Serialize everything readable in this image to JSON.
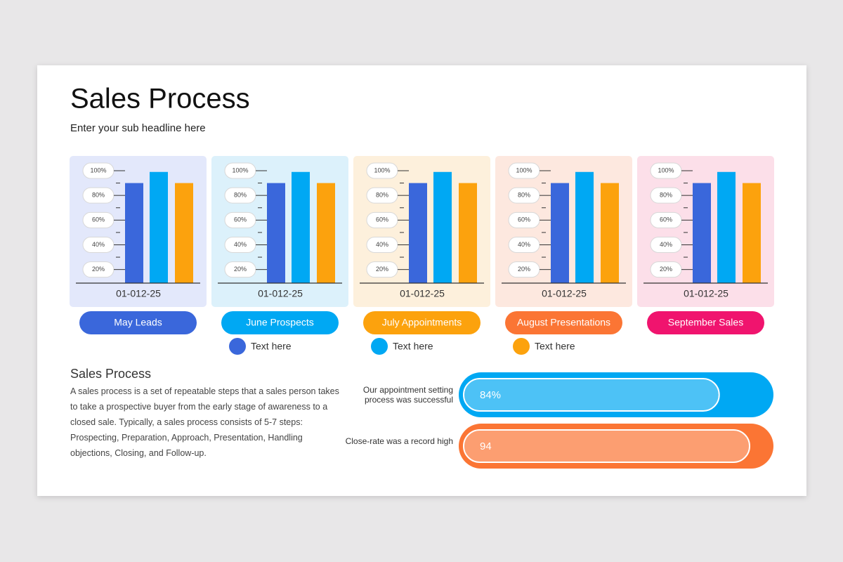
{
  "title": "Sales Process",
  "subtitle": "Enter your sub headline here",
  "chart_data": [
    {
      "type": "bar",
      "name": "May Leads",
      "name_color": "#3a67db",
      "background": "#e3e8fb",
      "x_label": "01-012-25",
      "categories": [
        null,
        null,
        null
      ],
      "values": [
        90,
        99,
        90
      ],
      "colors": [
        "#3a67db",
        "#00a8f3",
        "#fca20d"
      ],
      "ylim": [
        9,
        100
      ],
      "yticks": [
        {
          "value": 20,
          "label": "20%"
        },
        {
          "value": 40,
          "label": "40%"
        },
        {
          "value": 60,
          "label": "60%"
        },
        {
          "value": 80,
          "label": "80%"
        },
        {
          "value": 100,
          "label": "100%"
        }
      ],
      "minor_yticks": [
        30,
        50,
        70,
        90
      ]
    },
    {
      "type": "bar",
      "name": "June Prospects",
      "name_color": "#00a8f3",
      "background": "#dcf1fb",
      "x_label": "01-012-25",
      "categories": [
        null,
        null,
        null
      ],
      "values": [
        90,
        99,
        90
      ],
      "colors": [
        "#3a67db",
        "#00a8f3",
        "#fca20d"
      ],
      "ylim": [
        9,
        100
      ],
      "yticks": [
        {
          "value": 20,
          "label": "20%"
        },
        {
          "value": 40,
          "label": "40%"
        },
        {
          "value": 60,
          "label": "60%"
        },
        {
          "value": 80,
          "label": "80%"
        },
        {
          "value": 100,
          "label": "100%"
        }
      ],
      "minor_yticks": [
        30,
        50,
        70,
        90
      ]
    },
    {
      "type": "bar",
      "name": "July Appointments",
      "name_color": "#fca20d",
      "background": "#fdf0dc",
      "x_label": "01-012-25",
      "categories": [
        null,
        null,
        null
      ],
      "values": [
        90,
        99,
        90
      ],
      "colors": [
        "#3a67db",
        "#00a8f3",
        "#fca20d"
      ],
      "ylim": [
        9,
        100
      ],
      "yticks": [
        {
          "value": 20,
          "label": "20%"
        },
        {
          "value": 40,
          "label": "40%"
        },
        {
          "value": 60,
          "label": "60%"
        },
        {
          "value": 80,
          "label": "80%"
        },
        {
          "value": 100,
          "label": "100%"
        }
      ],
      "minor_yticks": [
        30,
        50,
        70,
        90
      ]
    },
    {
      "type": "bar",
      "name": "August Presentations",
      "name_color": "#fb7534",
      "background": "#fde8df",
      "x_label": "01-012-25",
      "categories": [
        null,
        null,
        null
      ],
      "values": [
        90,
        99,
        90
      ],
      "colors": [
        "#3a67db",
        "#00a8f3",
        "#fca20d"
      ],
      "ylim": [
        9,
        100
      ],
      "yticks": [
        {
          "value": 20,
          "label": "20%"
        },
        {
          "value": 40,
          "label": "40%"
        },
        {
          "value": 60,
          "label": "60%"
        },
        {
          "value": 80,
          "label": "80%"
        },
        {
          "value": 100,
          "label": "100%"
        }
      ],
      "minor_yticks": [
        30,
        50,
        70,
        90
      ]
    },
    {
      "type": "bar",
      "name": "September Sales",
      "name_color": "#f0146e",
      "background": "#fcdfe9",
      "x_label": "01-012-25",
      "categories": [
        null,
        null,
        null
      ],
      "values": [
        90,
        99,
        90
      ],
      "colors": [
        "#3a67db",
        "#00a8f3",
        "#fca20d"
      ],
      "ylim": [
        9,
        100
      ],
      "yticks": [
        {
          "value": 20,
          "label": "20%"
        },
        {
          "value": 40,
          "label": "40%"
        },
        {
          "value": 60,
          "label": "60%"
        },
        {
          "value": 80,
          "label": "80%"
        },
        {
          "value": 100,
          "label": "100%"
        }
      ],
      "minor_yticks": [
        30,
        50,
        70,
        90
      ]
    }
  ],
  "legend": [
    {
      "label": "Text here",
      "color": "#3a67db"
    },
    {
      "label": "Text here",
      "color": "#00a8f3"
    },
    {
      "label": "Text here",
      "color": "#fca20d"
    }
  ],
  "section": {
    "heading": "Sales Process",
    "body": "A sales process is a set of repeatable steps that a sales person takes to take a prospective buyer from the early stage of awareness to a closed sale. Typically, a sales process consists of 5-7 steps: Prospecting, Preparation, Approach, Presentation, Handling objections, Closing, and Follow-up."
  },
  "progress": [
    {
      "label": "Our appointment setting process was successful",
      "value": 84,
      "value_label": "84%",
      "color": "#00a8f3"
    },
    {
      "label": "Close-rate was a record high",
      "value": 94,
      "value_label": "94",
      "color": "#fb7534"
    }
  ]
}
